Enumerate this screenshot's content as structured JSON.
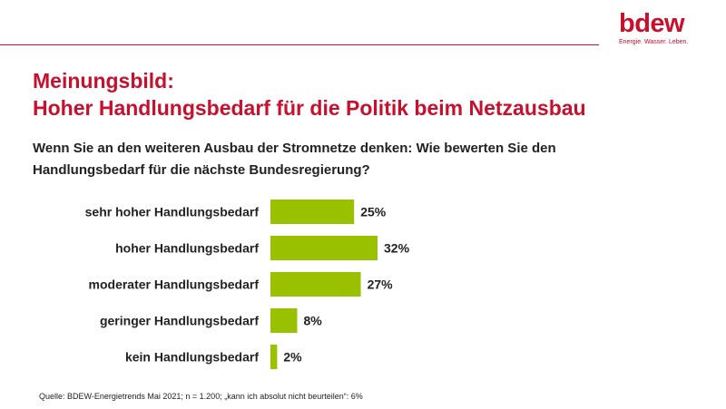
{
  "logo": {
    "text": "bdew",
    "claim": "Energie. Wasser. Leben."
  },
  "title": {
    "line1": "Meinungsbild:",
    "line2": "Hoher Handlungsbedarf für die Politik beim Netzausbau"
  },
  "question": "Wenn Sie an den weiteren Ausbau der Stromnetze denken: Wie bewerten Sie den Handlungsbedarf für die nächste Bundesregierung?",
  "source": "Quelle: BDEW-Energietrends Mai 2021; n = 1.200; „kann ich absolut nicht beurteilen“: 6%",
  "colors": {
    "brand": "#c8102e",
    "bar": "#99c100",
    "text": "#222222"
  },
  "chart_data": {
    "type": "bar",
    "orientation": "horizontal",
    "categories": [
      "sehr hoher Handlungsbedarf",
      "hoher Handlungsbedarf",
      "moderater Handlungsbedarf",
      "geringer Handlungsbedarf",
      "kein Handlungsbedarf"
    ],
    "values": [
      25,
      32,
      27,
      8,
      2
    ],
    "value_labels": [
      "25%",
      "32%",
      "27%",
      "8%",
      "2%"
    ],
    "unit": "%",
    "xlim": [
      0,
      32
    ],
    "grid": false,
    "legend": "none"
  }
}
